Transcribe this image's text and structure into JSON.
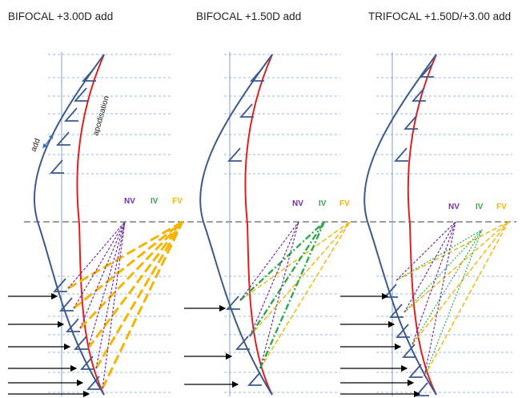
{
  "titles": [
    "BIFOCAL +3.00D add",
    "BIFOCAL +1.50D add",
    "TRIFOCAL +1.50D/+3.00 add"
  ],
  "annotations": {
    "add": "add",
    "apodisation": "apodisation"
  },
  "focus_labels": {
    "nv": "NV",
    "iv": "IV",
    "fv": "FV"
  },
  "colors": {
    "profile": "#3c5a8c",
    "apodisation": "#e02020",
    "grid": "#7f9fd0",
    "nv": "#7030a0",
    "iv": "#2ea84a",
    "fv": "#f4b400",
    "arrow": "#000000",
    "focal_plane": "#666666"
  }
}
